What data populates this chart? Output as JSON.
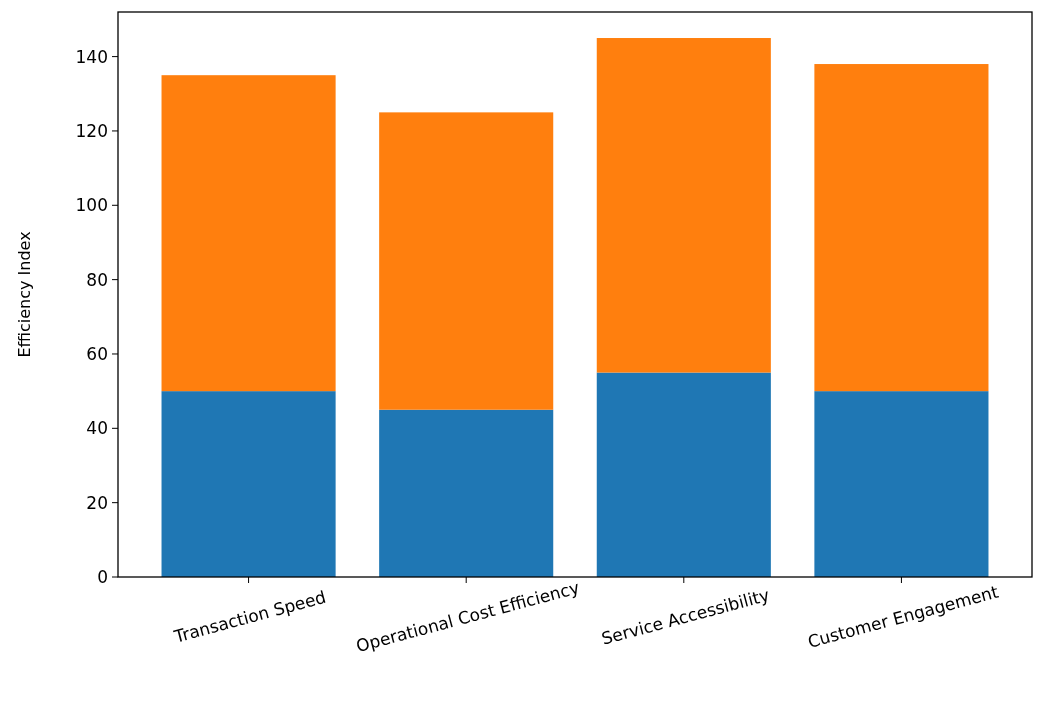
{
  "chart_data": {
    "type": "bar",
    "ylabel": "Efficiency Index",
    "categories": [
      "Transaction Speed",
      "Operational Cost Efficiency",
      "Service Accessibility",
      "Customer Engagement"
    ],
    "series": [
      {
        "color": "#1f77b4",
        "values": [
          50,
          45,
          55,
          50
        ]
      },
      {
        "color": "#ff7f0e",
        "values": [
          85,
          80,
          90,
          88
        ]
      }
    ],
    "stacked": true,
    "ylim": [
      0,
      152
    ],
    "yticks": [
      0,
      20,
      40,
      60,
      80,
      100,
      120,
      140
    ],
    "grid": false
  }
}
